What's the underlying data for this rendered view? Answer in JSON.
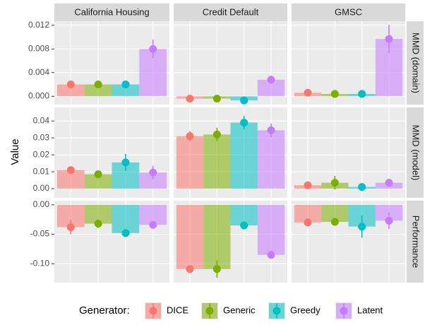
{
  "chart_data": {
    "type": "bar",
    "y_label": "Value",
    "legend_title": "Generator:",
    "series": [
      {
        "name": "DICE",
        "color": "#F8766D"
      },
      {
        "name": "Generic",
        "color": "#7CAE00"
      },
      {
        "name": "Greedy",
        "color": "#00BFC4"
      },
      {
        "name": "Latent",
        "color": "#C77CFF"
      }
    ],
    "columns": [
      "California Housing",
      "Credit Default",
      "GMSC"
    ],
    "rows": [
      {
        "label": "MMD (domain)",
        "ylim": [
          -0.0014,
          0.0127
        ],
        "yticks": [
          {
            "value": 0,
            "label": "0.000"
          },
          0.004,
          0.008,
          0.012
        ],
        "panels": [
          {
            "values": [
              0.002,
              0.002,
              0.002,
              0.008
            ],
            "errors": [
              0.0002,
              0.0002,
              0.0002,
              0.0016
            ]
          },
          {
            "values": [
              -0.0004,
              -0.0004,
              -0.0007,
              0.0028
            ],
            "errors": [
              0.0002,
              0.0002,
              0.0002,
              0.0007
            ]
          },
          {
            "values": [
              0.0006,
              0.0004,
              0.0004,
              0.0097
            ],
            "errors": [
              0.0002,
              0.0002,
              0.0002,
              0.0024
            ]
          }
        ]
      },
      {
        "label": "MMD (model)",
        "ylim": [
          -0.0054,
          0.048
        ],
        "yticks": [
          {
            "value": 0,
            "label": "0.00"
          },
          0.01,
          0.02,
          0.03,
          0.04
        ],
        "panels": [
          {
            "values": [
              0.011,
              0.0085,
              0.0155,
              0.0095
            ],
            "errors": [
              0.001,
              0.001,
              0.005,
              0.004
            ]
          },
          {
            "values": [
              0.031,
              0.032,
              0.039,
              0.0345
            ],
            "errors": [
              0.003,
              0.004,
              0.004,
              0.004
            ]
          },
          {
            "values": [
              0.002,
              0.0035,
              0.001,
              0.0035
            ],
            "errors": [
              0.001,
              0.004,
              0.001,
              0.001
            ]
          }
        ]
      },
      {
        "label": "Performance",
        "ylim": [
          -0.132,
          0.007
        ],
        "yticks": [
          {
            "value": 0,
            "label": "0.00"
          },
          -0.05,
          {
            "value": -0.1,
            "label": "-0.10"
          }
        ],
        "panels": [
          {
            "values": [
              -0.038,
              -0.032,
              -0.048,
              -0.034
            ],
            "errors": [
              0.012,
              0.007,
              0.004,
              0.003
            ]
          },
          {
            "values": [
              -0.109,
              -0.109,
              -0.035,
              -0.085
            ],
            "errors": [
              0.006,
              0.015,
              0.006,
              0.002
            ]
          },
          {
            "values": [
              -0.03,
              -0.029,
              -0.037,
              -0.027
            ],
            "errors": [
              0.007,
              0.006,
              0.019,
              0.014
            ]
          }
        ]
      }
    ]
  }
}
